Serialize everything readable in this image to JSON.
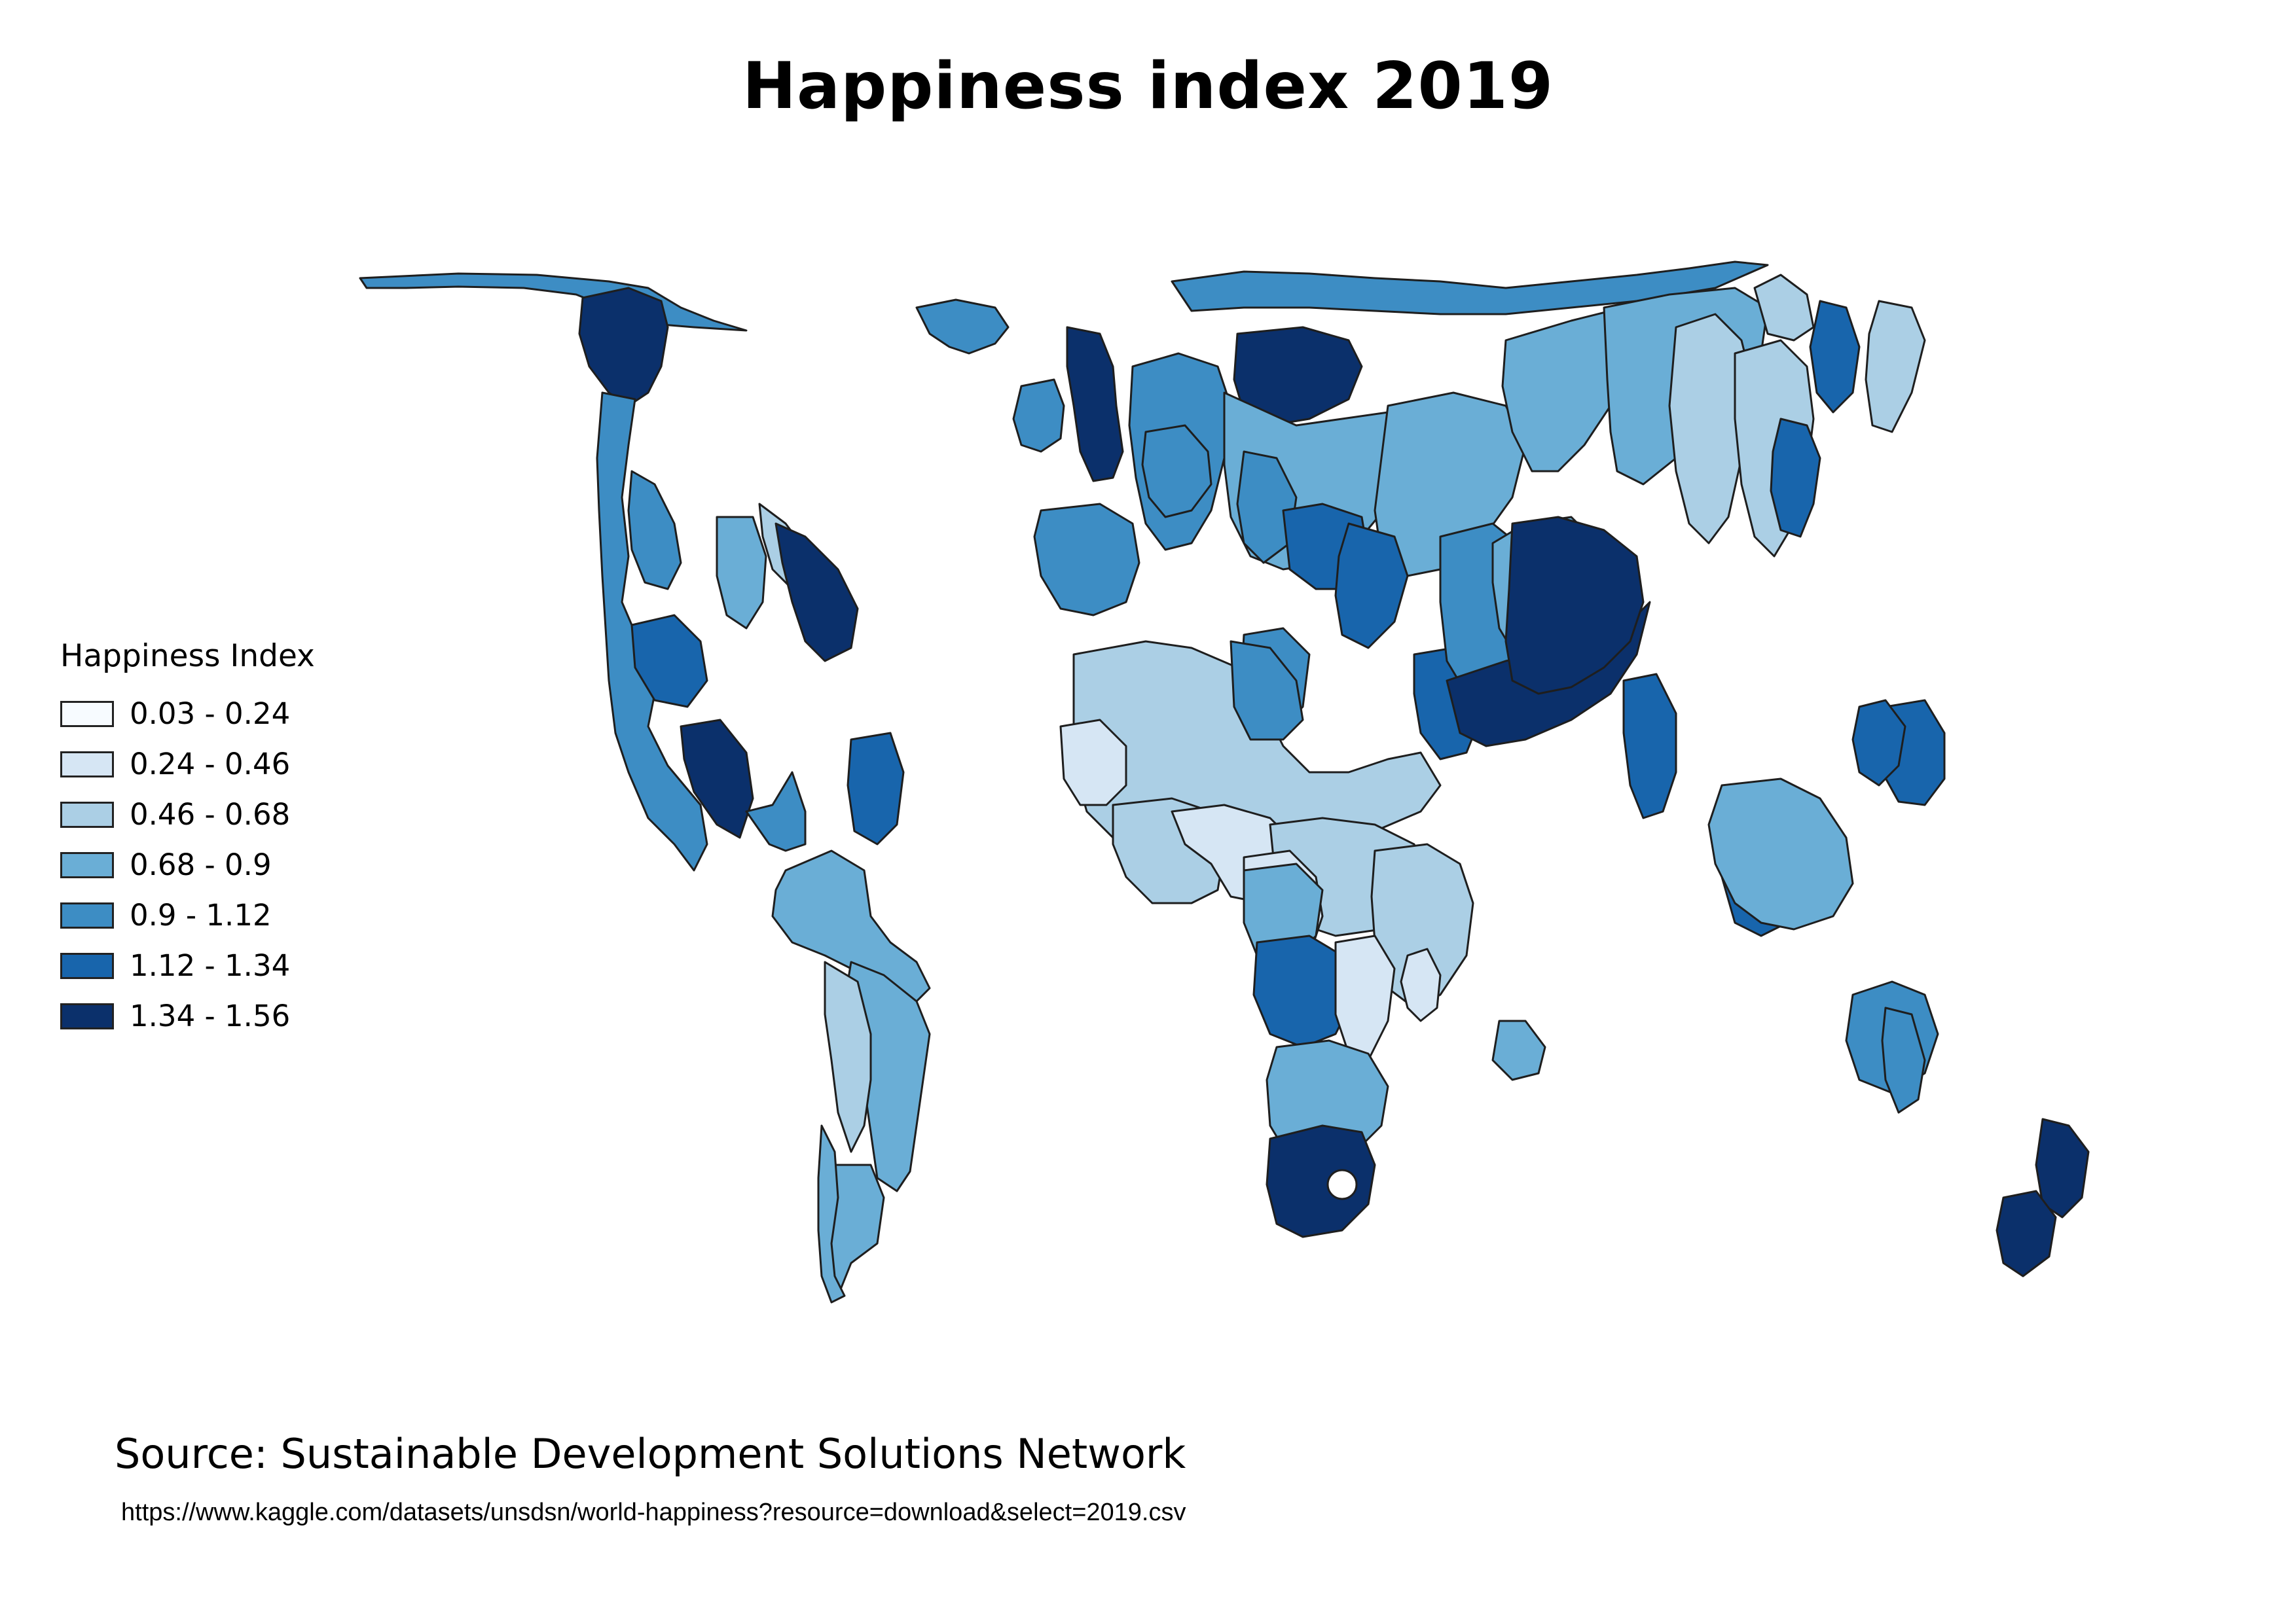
{
  "title": "Happiness index 2019",
  "legend": {
    "title": "Happiness Index",
    "classes": [
      {
        "label": "0.03 - 0.24",
        "color": "#f7fbff"
      },
      {
        "label": "0.24 - 0.46",
        "color": "#d6e6f4"
      },
      {
        "label": "0.46 - 0.68",
        "color": "#abcfe5"
      },
      {
        "label": "0.68 - 0.9",
        "color": "#6aaed6"
      },
      {
        "label": "0.9 - 1.12",
        "color": "#3d8dc4"
      },
      {
        "label": "1.12 - 1.34",
        "color": "#1865ac"
      },
      {
        "label": "1.34 - 1.56",
        "color": "#0b306b"
      }
    ]
  },
  "source": "Source: Sustainable Development Solutions Network",
  "url": "https://www.kaggle.com/datasets/unsdsn/world-happiness?resource=download&select=2019.csv"
}
